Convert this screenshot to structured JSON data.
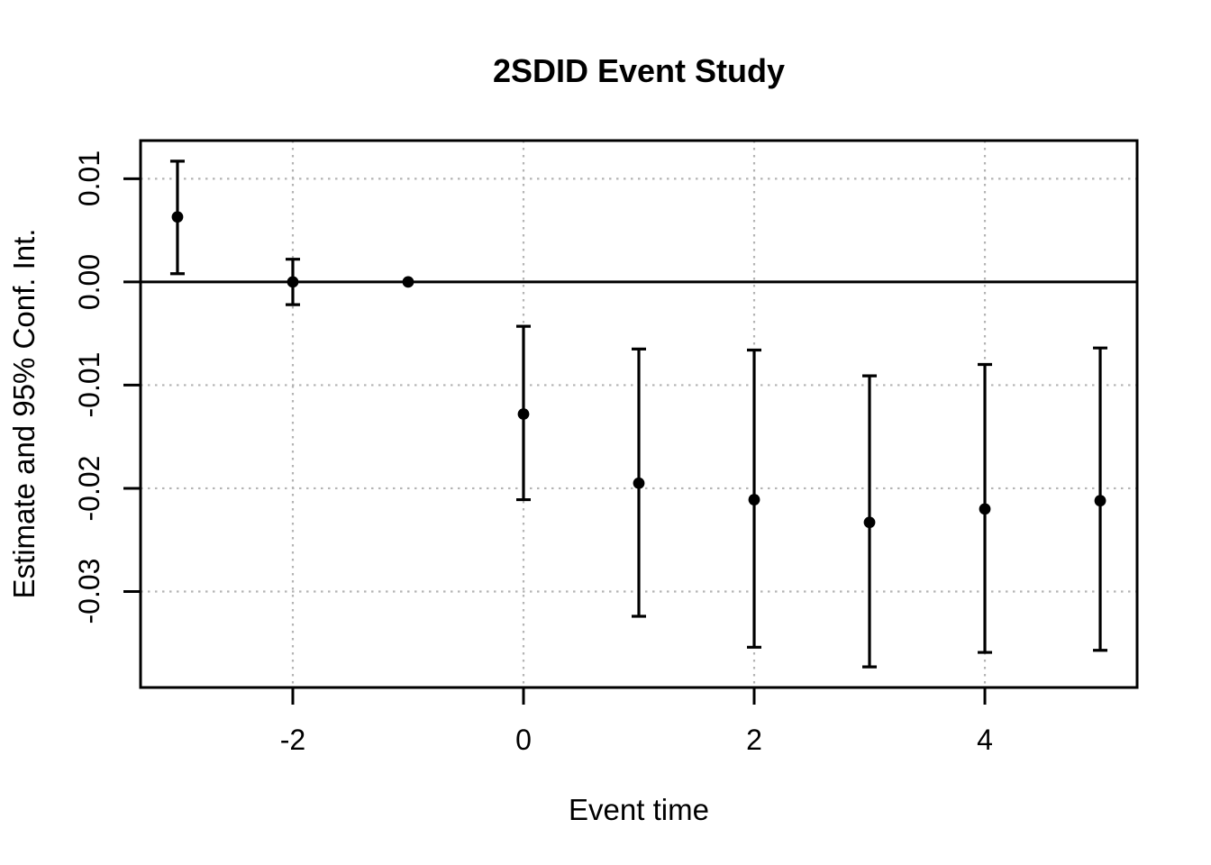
{
  "chart_data": {
    "type": "scatter",
    "title": "2SDID Event Study",
    "xlabel": "Event time",
    "ylabel": "Estimate and 95% Conf. Int.",
    "x": [
      -3,
      -2,
      -1,
      0,
      1,
      2,
      3,
      4,
      5
    ],
    "series": [
      {
        "name": "estimate",
        "values": [
          0.0063,
          0.0,
          0.0,
          -0.0128,
          -0.0195,
          -0.0211,
          -0.0233,
          -0.022,
          -0.0212
        ]
      },
      {
        "name": "ci_low",
        "values": [
          0.0008,
          -0.0022,
          0.0,
          -0.0211,
          -0.0324,
          -0.0354,
          -0.0373,
          -0.0359,
          -0.0357
        ]
      },
      {
        "name": "ci_high",
        "values": [
          0.0117,
          0.0022,
          0.0,
          -0.0043,
          -0.0065,
          -0.0066,
          -0.0091,
          -0.008,
          -0.0064
        ]
      }
    ],
    "x_ticks": [
      -2,
      0,
      2,
      4
    ],
    "x_tick_labels": [
      "-2",
      "0",
      "2",
      "4"
    ],
    "y_ticks": [
      0.01,
      0,
      -0.01,
      -0.02,
      -0.03
    ],
    "y_tick_labels": [
      "0.01",
      "0.00",
      "-0.01",
      "-0.02",
      "-0.03"
    ],
    "xlim": [
      -3.32,
      5.32
    ],
    "ylim": [
      -0.0393,
      0.0137
    ],
    "grid": true,
    "grid_style": "dotted",
    "legend": "none",
    "zero_line": 0,
    "colors": {
      "point": "#000000",
      "errorbar": "#000000",
      "grid": "#b4b4b4",
      "axis": "#000000",
      "text": "#000000",
      "background": "#ffffff"
    }
  }
}
